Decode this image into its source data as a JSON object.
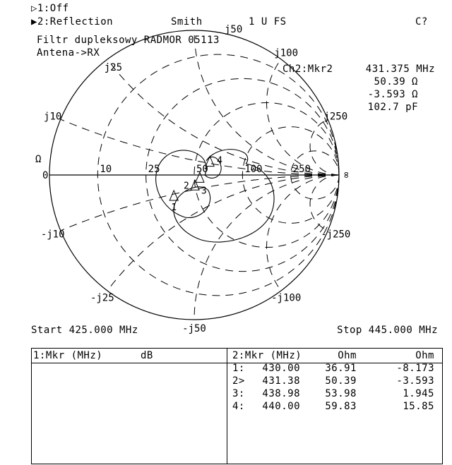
{
  "header": {
    "ch1": "▷1:Off",
    "ch2": "▶2:Reflection",
    "format": "Smith",
    "scale": "1 U FS",
    "cal_status": "C?"
  },
  "title": {
    "line1": "Filtr dupleksowy RADMOR 05113",
    "line2": "Antena->RX"
  },
  "marker_readout": {
    "label": "Ch2:Mkr2",
    "frequency": "431.375 MHz",
    "resistance": "50.39 Ω",
    "reactance": "-3.593 Ω",
    "capacitance": "102.7 pF"
  },
  "smith": {
    "z0": 50,
    "left_label": "0",
    "unit_label": "Ω",
    "right_label": "∞",
    "resistance_labels": [
      "10",
      "25",
      "50",
      "100",
      "250"
    ],
    "resistance_values": [
      10,
      25,
      50,
      100,
      250
    ],
    "reactance_values": [
      10,
      25,
      50,
      100,
      250
    ],
    "reactance_labels_pos": [
      "j10",
      "j25",
      "j50",
      "j100",
      "j250"
    ],
    "reactance_labels_neg": [
      "-j10",
      "-j25",
      "-j50",
      "-j100",
      "-j250"
    ],
    "markers": [
      {
        "label": "1",
        "r": 36.91,
        "x": -8.173
      },
      {
        "label": "2",
        "r": 50.39,
        "x": -3.593
      },
      {
        "label": "3",
        "r": 53.98,
        "x": 1.945
      },
      {
        "label": "4",
        "r": 59.83,
        "x": 15.85
      }
    ],
    "trace_color": "#000000"
  },
  "sweep": {
    "start": "Start 425.000 MHz",
    "stop": "Stop 445.000 MHz"
  },
  "table": {
    "left_header": {
      "mkr": "1:Mkr (MHz)",
      "unit": "dB"
    },
    "right_header": {
      "mkr": "2:Mkr (MHz)",
      "col1": "Ohm",
      "col2": "Ohm"
    },
    "rows": [
      {
        "id": "1:",
        "freq": "430.00",
        "re": "36.91",
        "im": "-8.173"
      },
      {
        "id": "2>",
        "freq": "431.38",
        "re": "50.39",
        "im": "-3.593"
      },
      {
        "id": "3:",
        "freq": "438.98",
        "re": "53.98",
        "im": "1.945"
      },
      {
        "id": "4:",
        "freq": "440.00",
        "re": "59.83",
        "im": "15.85"
      }
    ]
  }
}
